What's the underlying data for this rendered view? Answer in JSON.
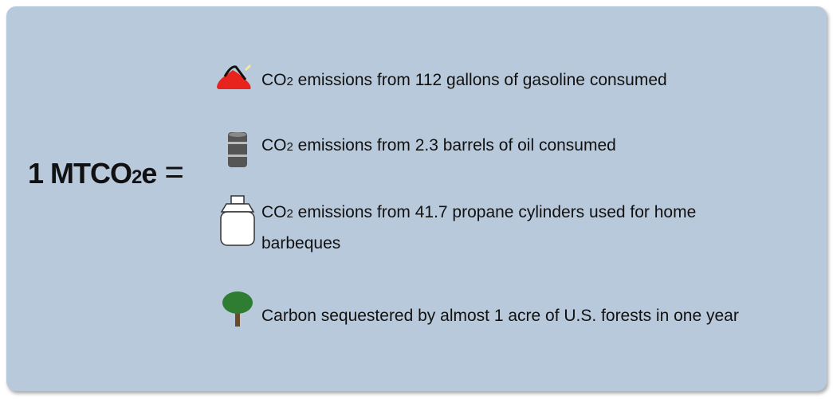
{
  "equation": {
    "parts": [
      "1 MTCO",
      "2",
      "e"
    ],
    "equals": "="
  },
  "items": [
    {
      "parts": [
        "CO",
        "2",
        " emissions from 112 gallons of gasoline consumed"
      ]
    },
    {
      "parts": [
        "CO",
        "2",
        " emissions from 2.3 barrels of oil consumed"
      ]
    },
    {
      "parts": [
        "CO",
        "2",
        " emissions from 41.7 propane cylinders used for home barbeques"
      ]
    },
    {
      "parts": [
        "Carbon sequestered by almost 1 acre of U.S. forests in one year"
      ]
    }
  ]
}
